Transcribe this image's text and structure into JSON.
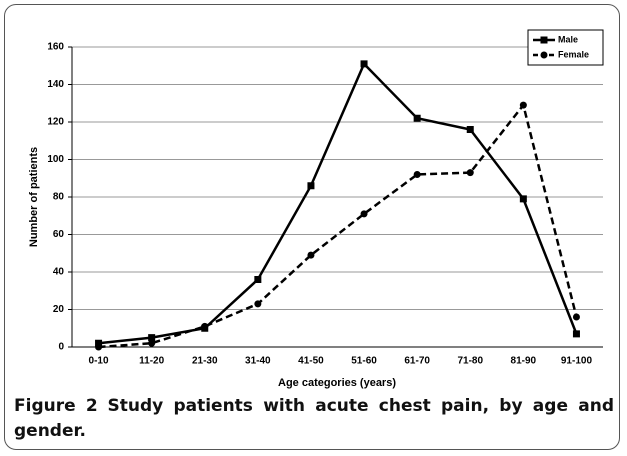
{
  "chart_data": {
    "type": "line",
    "figure_label": "Figure 2",
    "title": "Study patients with acute chest pain, by age and gender.",
    "x_label": "Age categories (years)",
    "y_label": "Number of patients",
    "categories": [
      "0-10",
      "11-20",
      "21-30",
      "31-40",
      "41-50",
      "51-60",
      "61-70",
      "71-80",
      "81-90",
      "91-100"
    ],
    "series": [
      {
        "name": "Male",
        "color": "#000000",
        "dash": "solid",
        "marker": "square",
        "values": [
          2,
          5,
          10,
          36,
          86,
          151,
          122,
          116,
          79,
          7
        ]
      },
      {
        "name": "Female",
        "color": "#000000",
        "dash": "dashed",
        "marker": "circle",
        "values": [
          0,
          2,
          11,
          23,
          49,
          71,
          92,
          93,
          129,
          16
        ]
      }
    ],
    "ylim": [
      0,
      160
    ],
    "yticks": [
      0,
      20,
      40,
      60,
      80,
      100,
      120,
      140,
      160
    ],
    "grid": true,
    "legend": "top-right"
  }
}
